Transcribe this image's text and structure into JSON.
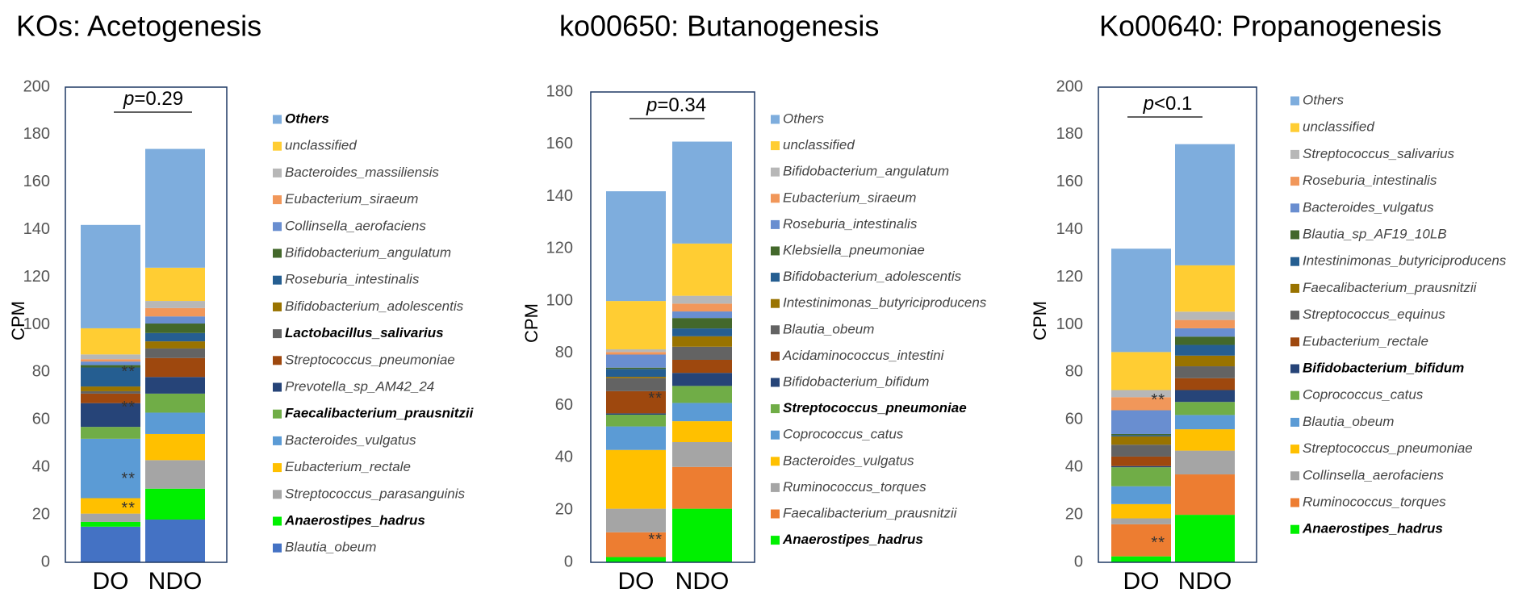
{
  "chart_data": [
    {
      "type": "bar",
      "stacked": true,
      "title": "KOs: Acetogenesis",
      "ylabel": "CPM",
      "xlabel": "",
      "ylim": [
        0,
        200
      ],
      "yticks": [
        "0",
        "20",
        "40",
        "60",
        "80",
        "100",
        "120",
        "140",
        "160",
        "180",
        "200"
      ],
      "categories": [
        "DO",
        "NDO"
      ],
      "pvalue": {
        "prefix": "p",
        "rest": "=0.29"
      },
      "significance": [
        {
          "label": "**",
          "series": "Anaerostipes_hadrus"
        },
        {
          "label": "**",
          "series": "Streptococcus_parasanguinis"
        },
        {
          "label": "**",
          "series": "Faecalibacterium_prausnitzii"
        },
        {
          "label": "**",
          "series": "Streptococcus_pneumoniae"
        }
      ],
      "series": [
        {
          "name": "Blautia_obeum",
          "color": "#4472C4",
          "bold": false,
          "values": [
            15,
            18
          ]
        },
        {
          "name": "Anaerostipes_hadrus",
          "color": "#00F000",
          "bold": true,
          "values": [
            2,
            13
          ]
        },
        {
          "name": "Streptococcus_parasanguinis",
          "color": "#A5A5A5",
          "bold": false,
          "values": [
            3.5,
            12
          ]
        },
        {
          "name": "Eubacterium_rectale",
          "color": "#FFC000",
          "bold": false,
          "values": [
            6.5,
            11
          ]
        },
        {
          "name": "Bacteroides_vulgatus",
          "color": "#5B9BD5",
          "bold": false,
          "values": [
            25,
            9
          ]
        },
        {
          "name": "Faecalibacterium_prausnitzii",
          "color": "#70AD47",
          "bold": true,
          "values": [
            5,
            8
          ]
        },
        {
          "name": "Prevotella_sp_AM42_24",
          "color": "#264478",
          "bold": false,
          "values": [
            10,
            7
          ]
        },
        {
          "name": "Streptococcus_pneumoniae",
          "color": "#9E480E",
          "bold": false,
          "values": [
            4,
            8
          ]
        },
        {
          "name": "Lactobacillus_salivarius",
          "color": "#636363",
          "bold": true,
          "values": [
            1,
            4
          ]
        },
        {
          "name": "Bifidobacterium_adolescentis",
          "color": "#997300",
          "bold": false,
          "values": [
            2,
            3
          ]
        },
        {
          "name": "Roseburia_intestinalis",
          "color": "#255E91",
          "bold": false,
          "values": [
            8,
            3.5
          ]
        },
        {
          "name": "Bifidobacterium_angulatum",
          "color": "#43682B",
          "bold": false,
          "values": [
            1,
            4
          ]
        },
        {
          "name": "Collinsella_aerofaciens",
          "color": "#698ED0",
          "bold": false,
          "values": [
            1.5,
            3
          ]
        },
        {
          "name": "Eubacterium_siraeum",
          "color": "#F1975A",
          "bold": false,
          "values": [
            1,
            3.5
          ]
        },
        {
          "name": "Bacteroides_massiliensis",
          "color": "#B7B7B7",
          "bold": false,
          "values": [
            2,
            3
          ]
        },
        {
          "name": "unclassified",
          "color": "#FFCD33",
          "bold": false,
          "values": [
            11,
            14
          ]
        },
        {
          "name": "Others",
          "color": "#7EADDD",
          "bold": true,
          "values": [
            43.5,
            50
          ]
        }
      ]
    },
    {
      "type": "bar",
      "stacked": true,
      "title": "ko00650: Butanogenesis",
      "ylabel": "CPM",
      "xlabel": "",
      "ylim": [
        0,
        180
      ],
      "yticks": [
        "0",
        "20",
        "40",
        "60",
        "80",
        "100",
        "120",
        "140",
        "160",
        "180"
      ],
      "categories": [
        "DO",
        "NDO"
      ],
      "pvalue": {
        "prefix": "p",
        "rest": "=0.34"
      },
      "significance": [
        {
          "label": "**",
          "series": "Anaerostipes_hadrus"
        },
        {
          "label": "**",
          "series": "Streptococcus_pneumoniae"
        }
      ],
      "series": [
        {
          "name": "Anaerostipes_hadrus",
          "color": "#00F000",
          "bold": true,
          "values": [
            2,
            20.5
          ]
        },
        {
          "name": "Faecalibacterium_prausnitzii",
          "color": "#ED7D31",
          "bold": false,
          "values": [
            9.5,
            16
          ]
        },
        {
          "name": "Ruminococcus_torques",
          "color": "#A5A5A5",
          "bold": false,
          "values": [
            9,
            9.5
          ]
        },
        {
          "name": "Bacteroides_vulgatus",
          "color": "#FFC000",
          "bold": false,
          "values": [
            22.5,
            8
          ]
        },
        {
          "name": "Coprococcus_catus",
          "color": "#5B9BD5",
          "bold": false,
          "values": [
            9,
            7
          ]
        },
        {
          "name": "Streptococcus_pneumoniae",
          "color": "#70AD47",
          "bold": true,
          "values": [
            4.5,
            6.5
          ]
        },
        {
          "name": "Bifidobacterium_bifidum",
          "color": "#264478",
          "bold": false,
          "values": [
            0.5,
            5
          ]
        },
        {
          "name": "Acidaminococcus_intestini",
          "color": "#9E480E",
          "bold": false,
          "values": [
            8.5,
            5
          ]
        },
        {
          "name": "Blautia_obeum",
          "color": "#636363",
          "bold": false,
          "values": [
            5,
            5
          ]
        },
        {
          "name": "Intestinimonas_butyriciproducens",
          "color": "#997300",
          "bold": false,
          "values": [
            0.5,
            4
          ]
        },
        {
          "name": "Bifidobacterium_adolescentis",
          "color": "#255E91",
          "bold": false,
          "values": [
            3,
            3
          ]
        },
        {
          "name": "Klebsiella_pneumoniae",
          "color": "#43682B",
          "bold": false,
          "values": [
            0.5,
            4
          ]
        },
        {
          "name": "Roseburia_intestinalis",
          "color": "#698ED0",
          "bold": false,
          "values": [
            5,
            2.5
          ]
        },
        {
          "name": "Eubacterium_siraeum",
          "color": "#F1975A",
          "bold": false,
          "values": [
            1,
            3
          ]
        },
        {
          "name": "Bifidobacterium_angulatum",
          "color": "#B7B7B7",
          "bold": false,
          "values": [
            1,
            3
          ]
        },
        {
          "name": "unclassified",
          "color": "#FFCD33",
          "bold": false,
          "values": [
            18.5,
            20
          ]
        },
        {
          "name": "Others",
          "color": "#7EADDD",
          "bold": false,
          "values": [
            42,
            39
          ]
        }
      ]
    },
    {
      "type": "bar",
      "stacked": true,
      "title": "Ko00640: Propanogenesis",
      "ylabel": "CPM",
      "xlabel": "",
      "ylim": [
        0,
        200
      ],
      "yticks": [
        "0",
        "20",
        "40",
        "60",
        "80",
        "100",
        "120",
        "140",
        "160",
        "180",
        "200"
      ],
      "categories": [
        "DO",
        "NDO"
      ],
      "pvalue": {
        "prefix": "p",
        "rest": "<0.1"
      },
      "significance": [
        {
          "label": "**",
          "series": "Anaerostipes_hadrus"
        },
        {
          "label": "**",
          "series": "Bifidobacterium_bifidum"
        }
      ],
      "series": [
        {
          "name": "Anaerostipes_hadrus",
          "color": "#00F000",
          "bold": true,
          "values": [
            2.5,
            20
          ]
        },
        {
          "name": "Ruminococcus_torques",
          "color": "#ED7D31",
          "bold": false,
          "values": [
            13.5,
            17
          ]
        },
        {
          "name": "Collinsella_aerofaciens",
          "color": "#A5A5A5",
          "bold": false,
          "values": [
            2.5,
            10
          ]
        },
        {
          "name": "Streptococcus_pneumoniae",
          "color": "#FFC000",
          "bold": false,
          "values": [
            6,
            9
          ]
        },
        {
          "name": "Blautia_obeum",
          "color": "#5B9BD5",
          "bold": false,
          "values": [
            7.5,
            6
          ]
        },
        {
          "name": "Coprococcus_catus",
          "color": "#70AD47",
          "bold": false,
          "values": [
            8,
            5.5
          ]
        },
        {
          "name": "Bifidobacterium_bifidum",
          "color": "#264478",
          "bold": true,
          "values": [
            0.5,
            5
          ]
        },
        {
          "name": "Eubacterium_rectale",
          "color": "#9E480E",
          "bold": false,
          "values": [
            4,
            5
          ]
        },
        {
          "name": "Streptococcus_equinus",
          "color": "#636363",
          "bold": false,
          "values": [
            5,
            5
          ]
        },
        {
          "name": "Faecalibacterium_prausnitzii",
          "color": "#997300",
          "bold": false,
          "values": [
            3.5,
            4.5
          ]
        },
        {
          "name": "Intestinimonas_butyriciproducens",
          "color": "#255E91",
          "bold": false,
          "values": [
            0.5,
            4.5
          ]
        },
        {
          "name": "Blautia_sp_AF19_10LB",
          "color": "#43682B",
          "bold": false,
          "values": [
            0.5,
            3.5
          ]
        },
        {
          "name": "Bacteroides_vulgatus",
          "color": "#698ED0",
          "bold": false,
          "values": [
            10,
            3.5
          ]
        },
        {
          "name": "Roseburia_intestinalis",
          "color": "#F1975A",
          "bold": false,
          "values": [
            5.5,
            3.5
          ]
        },
        {
          "name": "Streptococcus_salivarius",
          "color": "#B7B7B7",
          "bold": false,
          "values": [
            3,
            3.5
          ]
        },
        {
          "name": "unclassified",
          "color": "#FFCD33",
          "bold": false,
          "values": [
            16,
            19.5
          ]
        },
        {
          "name": "Others",
          "color": "#7EADDD",
          "bold": false,
          "values": [
            43.5,
            51
          ]
        }
      ]
    }
  ]
}
